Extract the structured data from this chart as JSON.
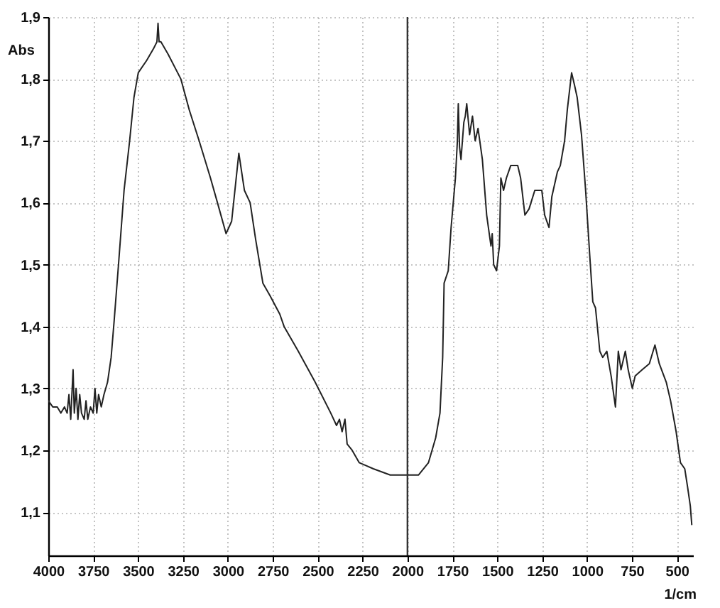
{
  "chart_data": {
    "type": "line",
    "xlabel": "1/cm",
    "ylabel": "Abs",
    "x": [
      4000,
      3975,
      3950,
      3930,
      3910,
      3895,
      3885,
      3875,
      3862,
      3855,
      3845,
      3835,
      3825,
      3815,
      3800,
      3790,
      3780,
      3765,
      3750,
      3740,
      3730,
      3720,
      3705,
      3690,
      3670,
      3650,
      3633,
      3609,
      3578,
      3547,
      3523,
      3499,
      3452,
      3412,
      3395,
      3389,
      3383,
      3373,
      3333,
      3262,
      3215,
      3160,
      3097,
      3058,
      3010,
      2979,
      2939,
      2908,
      2876,
      2845,
      2805,
      2766,
      2711,
      2687,
      2608,
      2514,
      2427,
      2395,
      2379,
      2364,
      2348,
      2336,
      2308,
      2269,
      2190,
      2096,
      2001,
      1938,
      1883,
      1843,
      1819,
      1804,
      1796,
      1773,
      1757,
      1733,
      1722,
      1717,
      1710,
      1702,
      1686,
      1678,
      1670,
      1654,
      1638,
      1623,
      1607,
      1583,
      1559,
      1535,
      1528,
      1520,
      1504,
      1488,
      1480,
      1465,
      1449,
      1425,
      1386,
      1370,
      1346,
      1323,
      1291,
      1252,
      1236,
      1212,
      1196,
      1165,
      1149,
      1125,
      1110,
      1086,
      1070,
      1055,
      1031,
      1008,
      984,
      968,
      953,
      929,
      913,
      890,
      866,
      842,
      826,
      811,
      787,
      771,
      748,
      732,
      693,
      653,
      622,
      598,
      559,
      535,
      504,
      480,
      456,
      440,
      425,
      417
    ],
    "series": [
      {
        "color": "#222222",
        "values": [
          1.28,
          1.27,
          1.27,
          1.26,
          1.27,
          1.26,
          1.29,
          1.25,
          1.33,
          1.26,
          1.3,
          1.25,
          1.29,
          1.26,
          1.25,
          1.28,
          1.25,
          1.27,
          1.26,
          1.3,
          1.26,
          1.29,
          1.27,
          1.29,
          1.31,
          1.35,
          1.41,
          1.5,
          1.62,
          1.7,
          1.77,
          1.81,
          1.83,
          1.85,
          1.86,
          1.89,
          1.86,
          1.86,
          1.84,
          1.8,
          1.75,
          1.7,
          1.64,
          1.6,
          1.55,
          1.57,
          1.68,
          1.62,
          1.6,
          1.54,
          1.47,
          1.45,
          1.42,
          1.4,
          1.36,
          1.31,
          1.26,
          1.24,
          1.25,
          1.23,
          1.25,
          1.21,
          1.2,
          1.18,
          1.17,
          1.16,
          1.16,
          1.16,
          1.18,
          1.22,
          1.26,
          1.35,
          1.47,
          1.49,
          1.56,
          1.64,
          1.7,
          1.76,
          1.69,
          1.67,
          1.73,
          1.74,
          1.76,
          1.71,
          1.74,
          1.7,
          1.72,
          1.67,
          1.58,
          1.53,
          1.55,
          1.5,
          1.49,
          1.53,
          1.64,
          1.62,
          1.64,
          1.66,
          1.66,
          1.64,
          1.58,
          1.59,
          1.62,
          1.62,
          1.58,
          1.56,
          1.61,
          1.65,
          1.66,
          1.7,
          1.75,
          1.81,
          1.79,
          1.77,
          1.71,
          1.62,
          1.51,
          1.44,
          1.43,
          1.36,
          1.35,
          1.36,
          1.32,
          1.27,
          1.36,
          1.33,
          1.36,
          1.33,
          1.3,
          1.32,
          1.33,
          1.34,
          1.37,
          1.34,
          1.31,
          1.28,
          1.23,
          1.18,
          1.17,
          1.14,
          1.11,
          1.08
        ]
      }
    ],
    "xlim": [
      4000,
      410
    ],
    "xticks": [
      4000,
      3750,
      3500,
      3250,
      3000,
      2750,
      2500,
      2250,
      2000,
      1750,
      1500,
      1250,
      1000,
      750,
      500
    ],
    "ylim": [
      1.03,
      1.9
    ],
    "yticks": [
      {
        "value": 1.1,
        "label": "1,1"
      },
      {
        "value": 1.2,
        "label": "1,2"
      },
      {
        "value": 1.3,
        "label": "1,3"
      },
      {
        "value": 1.4,
        "label": "1,4"
      },
      {
        "value": 1.5,
        "label": "1,5"
      },
      {
        "value": 1.6,
        "label": "1,6"
      },
      {
        "value": 1.7,
        "label": "1,7"
      },
      {
        "value": 1.8,
        "label": "1,8"
      },
      {
        "value": 1.9,
        "label": "1,9"
      }
    ],
    "ref_lines": [
      {
        "axis": "x",
        "value": 2000,
        "color": "#333333"
      }
    ],
    "grid": true
  }
}
